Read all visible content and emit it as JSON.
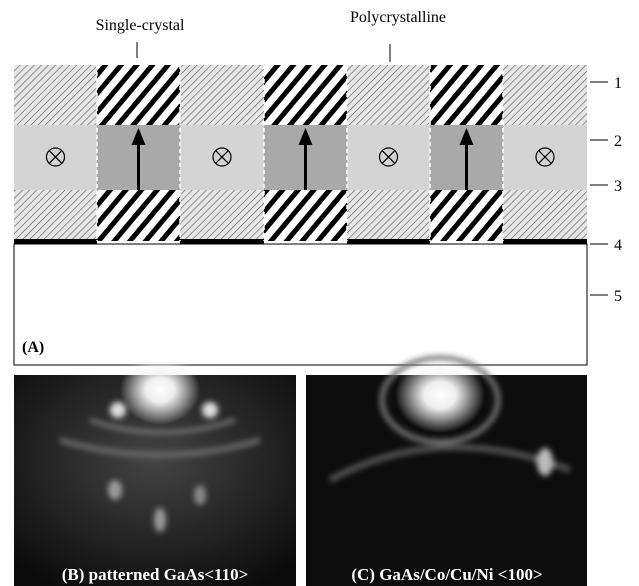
{
  "annotations": {
    "single_crystal": "Single-crystal",
    "polycrystalline": "Polycrystalline"
  },
  "layers": [
    "1",
    "2",
    "3",
    "4",
    "5"
  ],
  "panels": {
    "a": "(A)",
    "b": "(B) patterned GaAs<110>",
    "c": "(C) GaAs/Co/Cu/Ni <100>"
  }
}
